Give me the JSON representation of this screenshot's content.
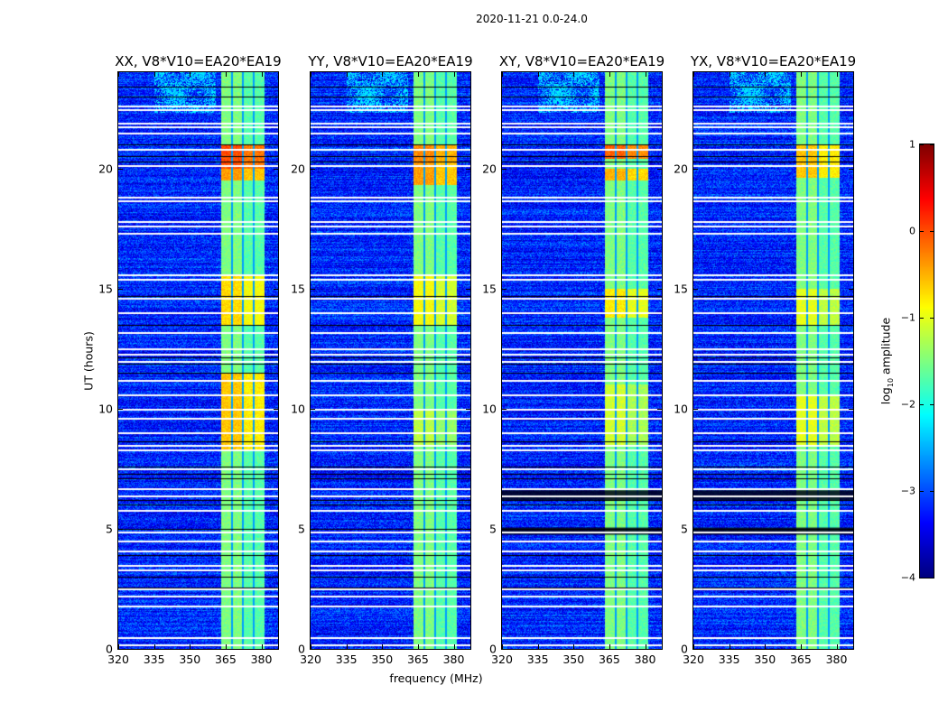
{
  "chart_data": {
    "type": "heatmap",
    "suptitle": "2020-11-21 0.0-24.0",
    "xlabel": "frequency (MHz)",
    "ylabel": "UT (hours)",
    "xlim": [
      320,
      387
    ],
    "ylim": [
      0,
      24
    ],
    "xticks": [
      "320",
      "335",
      "350",
      "365",
      "380"
    ],
    "yticks": [
      "0",
      "5",
      "10",
      "15",
      "20"
    ],
    "colorbar": {
      "label_main": "log",
      "label_sub": "10",
      "label_rest": " amplitude",
      "range": [
        -4,
        1
      ],
      "ticks": [
        "1",
        "0",
        "−1",
        "−2",
        "−3",
        "−4"
      ],
      "colormap": "jet"
    },
    "background_level": -3.2,
    "band": {
      "start_mhz": 363,
      "end_mhz": 381.5,
      "gaps_mhz": [
        367.7,
        372.3,
        376.8
      ],
      "base_level": -1.5
    },
    "cloud": {
      "hours": [
        22.3,
        24
      ],
      "mhz": [
        335,
        361
      ],
      "level": -2.3
    },
    "flagged_hours_white": [
      22.6,
      22.45,
      21.9,
      21.75,
      21.5,
      20.8,
      20.15,
      18.8,
      18.65,
      17.8,
      17.6,
      17.3,
      15.6,
      15.4,
      14.6,
      14.0,
      13.2,
      12.5,
      12.3,
      12.0,
      11.2,
      10.6,
      10.0,
      9.6,
      9.0,
      8.5,
      8.3,
      7.5,
      6.7,
      6.4,
      5.8,
      4.9,
      4.5,
      4.1,
      3.5,
      3.3,
      2.5,
      2.2,
      1.8,
      0.5,
      0.2
    ],
    "black_hours": [
      23.4,
      23.0,
      21.0,
      20.5,
      20.3,
      14.7,
      13.5,
      12.15,
      11.85,
      11.5,
      8.65,
      7.6,
      7.3,
      7.1,
      6.2,
      6.0,
      5.0,
      4.85,
      3.9,
      3.0,
      2.55,
      1.75
    ],
    "panels": [
      {
        "title": "XX, V8*V10=EA20*EA19",
        "dark_bands": [],
        "bright": [
          {
            "hours": [
              20.0,
              21.0
            ],
            "level": 0.0
          },
          {
            "hours": [
              19.5,
              20.0
            ],
            "level": -0.4
          },
          {
            "hours": [
              13.5,
              15.5
            ],
            "level": -0.7
          },
          {
            "hours": [
              8.3,
              11.5
            ],
            "level": -0.6
          }
        ]
      },
      {
        "title": "YY, V8*V10=EA20*EA19",
        "dark_bands": [],
        "bright": [
          {
            "hours": [
              20.2,
              21.0
            ],
            "level": -0.3
          },
          {
            "hours": [
              19.3,
              20.2
            ],
            "level": -0.4
          },
          {
            "hours": [
              13.5,
              15.6
            ],
            "level": -0.9
          },
          {
            "hours": [
              8.5,
              10.0
            ],
            "level": -1.2
          }
        ]
      },
      {
        "title": "XY, V8*V10=EA20*EA19",
        "dark_bands": [
          [
            6.2,
            6.6
          ],
          [
            4.75,
            5.05
          ]
        ],
        "bright": [
          {
            "hours": [
              20.4,
              21.0
            ],
            "level": -0.1
          },
          {
            "hours": [
              19.5,
              20.0
            ],
            "level": -0.5
          },
          {
            "hours": [
              13.8,
              15.0
            ],
            "level": -0.8
          },
          {
            "hours": [
              8.5,
              11.0
            ],
            "level": -1.1
          }
        ]
      },
      {
        "title": "YX, V8*V10=EA20*EA19",
        "dark_bands": [
          [
            6.2,
            6.6
          ],
          [
            4.75,
            5.05
          ]
        ],
        "bright": [
          {
            "hours": [
              19.6,
              21.0
            ],
            "level": -0.6
          },
          {
            "hours": [
              13.5,
              15.0
            ],
            "level": -1.0
          },
          {
            "hours": [
              8.5,
              10.5
            ],
            "level": -1.0
          }
        ]
      }
    ]
  }
}
